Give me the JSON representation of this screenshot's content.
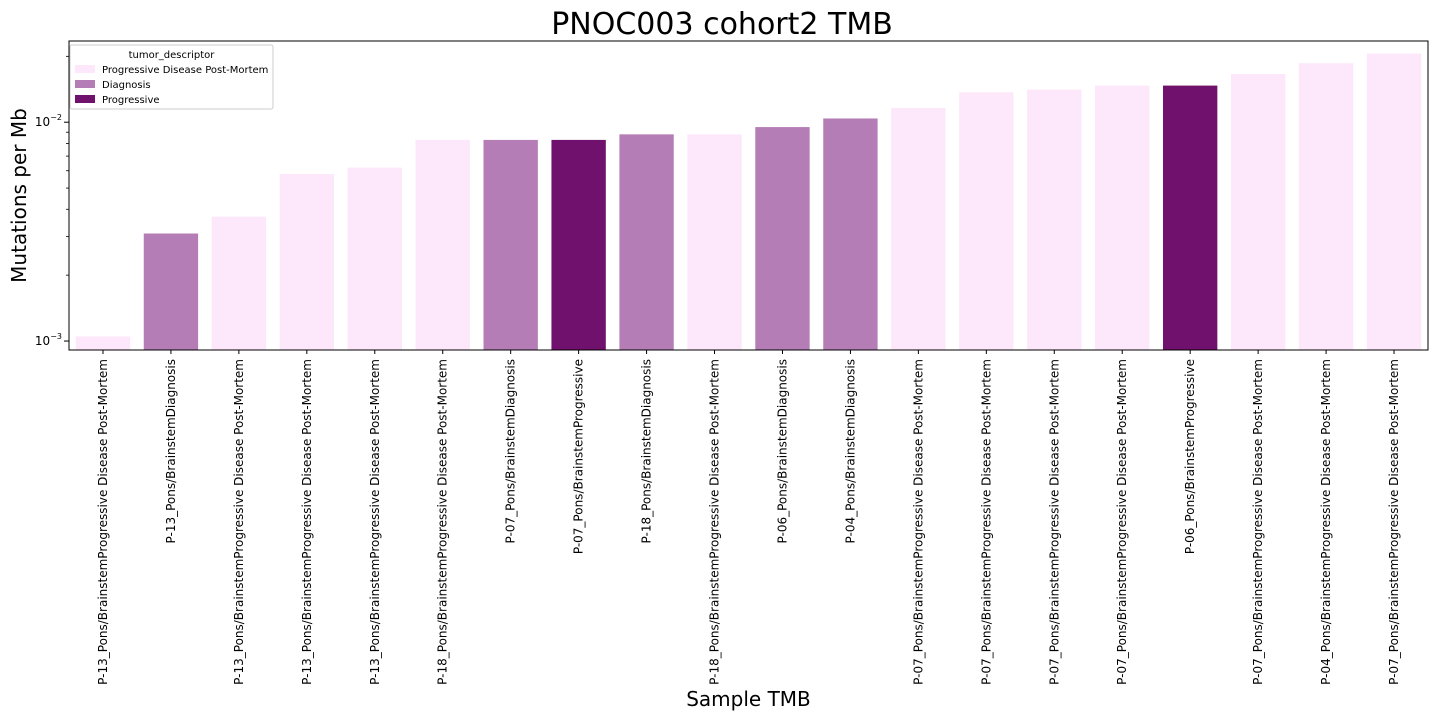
{
  "chart_data": {
    "type": "bar",
    "title": "PNOC003 cohort2 TMB",
    "xlabel": "Sample TMB",
    "ylabel": "Mutations per Mb",
    "yscale": "log",
    "ylim": [
      0.00091,
      0.0235
    ],
    "yticks": [
      {
        "value": 0.001,
        "base": "10",
        "exp": "−3"
      },
      {
        "value": 0.01,
        "base": "10",
        "exp": "−2"
      }
    ],
    "grid": false,
    "legend": {
      "title": "tumor_descriptor",
      "placement": "top-left",
      "entries": [
        {
          "label": "Progressive Disease Post-Mortem",
          "color": "#fce8fa"
        },
        {
          "label": "Diagnosis",
          "color": "#b57db6"
        },
        {
          "label": "Progressive",
          "color": "#70116e"
        }
      ]
    },
    "categories": [
      "P-13_Pons/BrainstemProgressive Disease Post-Mortem",
      "P-13_Pons/BrainstemDiagnosis",
      "P-13_Pons/BrainstemProgressive Disease Post-Mortem",
      "P-13_Pons/BrainstemProgressive Disease Post-Mortem",
      "P-13_Pons/BrainstemProgressive Disease Post-Mortem",
      "P-18_Pons/BrainstemProgressive Disease Post-Mortem",
      "P-07_Pons/BrainstemDiagnosis",
      "P-07_Pons/BrainstemProgressive",
      "P-18_Pons/BrainstemDiagnosis",
      "P-18_Pons/BrainstemProgressive Disease Post-Mortem",
      "P-06_Pons/BrainstemDiagnosis",
      "P-04_Pons/BrainstemDiagnosis",
      "P-07_Pons/BrainstemProgressive Disease Post-Mortem",
      "P-07_Pons/BrainstemProgressive Disease Post-Mortem",
      "P-07_Pons/BrainstemProgressive Disease Post-Mortem",
      "P-07_Pons/BrainstemProgressive Disease Post-Mortem",
      "P-06_Pons/BrainstemProgressive",
      "P-07_Pons/BrainstemProgressive Disease Post-Mortem",
      "P-04_Pons/BrainstemProgressive Disease Post-Mortem",
      "P-07_Pons/BrainstemProgressive Disease Post-Mortem"
    ],
    "groups": [
      "Progressive Disease Post-Mortem",
      "Diagnosis",
      "Progressive Disease Post-Mortem",
      "Progressive Disease Post-Mortem",
      "Progressive Disease Post-Mortem",
      "Progressive Disease Post-Mortem",
      "Diagnosis",
      "Progressive",
      "Diagnosis",
      "Progressive Disease Post-Mortem",
      "Diagnosis",
      "Diagnosis",
      "Progressive Disease Post-Mortem",
      "Progressive Disease Post-Mortem",
      "Progressive Disease Post-Mortem",
      "Progressive Disease Post-Mortem",
      "Progressive",
      "Progressive Disease Post-Mortem",
      "Progressive Disease Post-Mortem",
      "Progressive Disease Post-Mortem"
    ],
    "values": [
      0.00105,
      0.0031,
      0.0037,
      0.0058,
      0.0062,
      0.0083,
      0.0083,
      0.0083,
      0.0088,
      0.0088,
      0.0095,
      0.0104,
      0.0116,
      0.0137,
      0.0141,
      0.0147,
      0.0147,
      0.0166,
      0.0186,
      0.0206
    ]
  }
}
